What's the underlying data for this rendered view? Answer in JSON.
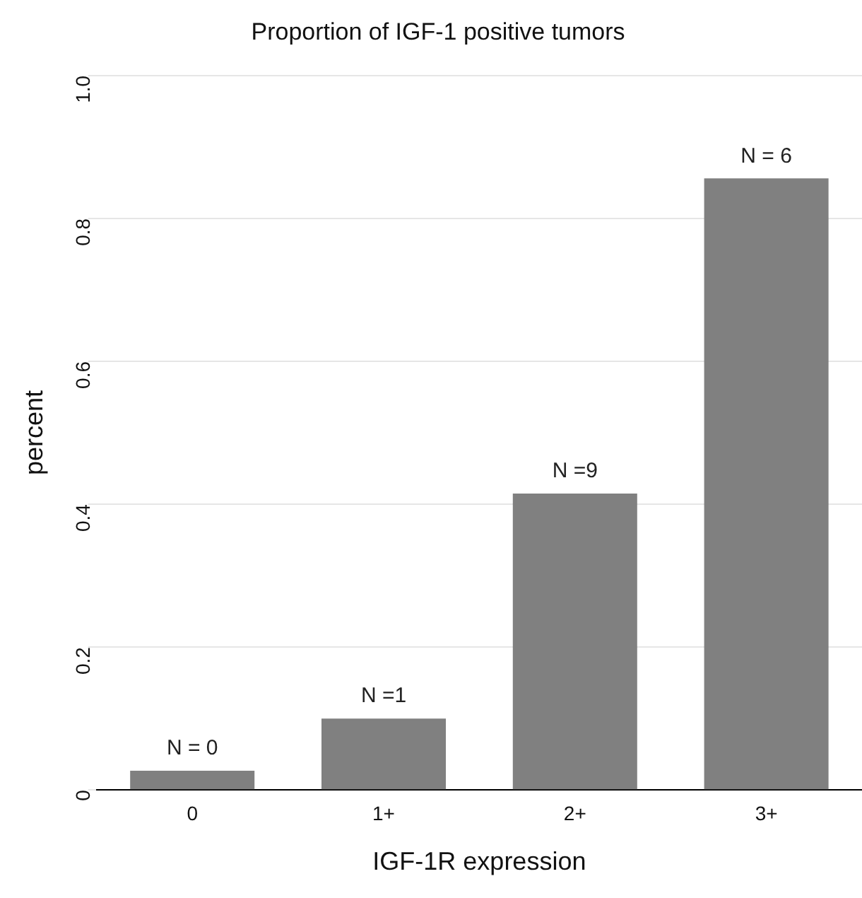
{
  "chart_data": {
    "type": "bar",
    "title": "Proportion of IGF-1 positive tumors",
    "xlabel": "IGF-1R expression",
    "ylabel": "percent",
    "categories": [
      "0",
      "1+",
      "2+",
      "3+"
    ],
    "values": [
      0.027,
      0.1,
      0.415,
      0.856
    ],
    "color": "#808080",
    "ylim": [
      0,
      1.0
    ],
    "yticks": [
      {
        "value": 0,
        "label": "0"
      },
      0.2,
      0.4,
      0.6,
      0.8,
      {
        "value": 1.0,
        "label": "1.0"
      }
    ],
    "grid": "y",
    "legend": false,
    "annotations": [
      {
        "text": "N = 0",
        "x": "0",
        "y": 0.027
      },
      {
        "text": "N =1",
        "x": "1+",
        "y": 0.1
      },
      {
        "text": "N =9",
        "x": "2+",
        "y": 0.415
      },
      {
        "text": "N = 6",
        "x": "3+",
        "y": 0.856
      }
    ]
  }
}
